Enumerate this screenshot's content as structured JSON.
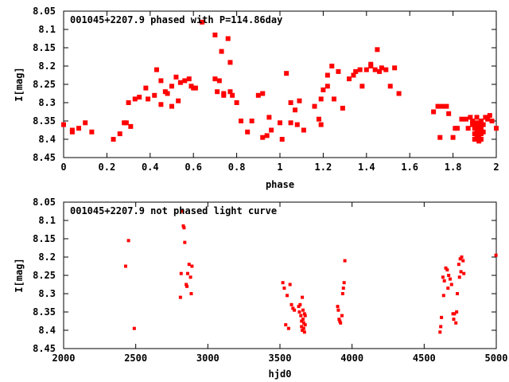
{
  "chart_data": [
    {
      "type": "scatter",
      "title": "001045+2207.9 phased with P=114.86day",
      "xlabel": "phase",
      "ylabel": "I[mag]",
      "xlim": [
        0,
        2
      ],
      "ylim": [
        8.05,
        8.45
      ],
      "y_inverted": true,
      "xticks": [
        "0",
        "0.2",
        "0.4",
        "0.6",
        "0.8",
        "1",
        "1.2",
        "1.4",
        "1.6",
        "1.8",
        "2"
      ],
      "yticks": [
        "8.05",
        "8.1",
        "8.15",
        "8.2",
        "8.25",
        "8.3",
        "8.35",
        "8.4",
        "8.45"
      ],
      "grid": false,
      "color": "#ff0000",
      "series": [
        {
          "points": [
            [
              0.0,
              8.36
            ],
            [
              0.04,
              8.375
            ],
            [
              0.04,
              8.38
            ],
            [
              0.07,
              8.37
            ],
            [
              0.1,
              8.355
            ],
            [
              0.13,
              8.38
            ],
            [
              0.23,
              8.4
            ],
            [
              0.26,
              8.385
            ],
            [
              0.28,
              8.355
            ],
            [
              0.29,
              8.355
            ],
            [
              0.31,
              8.365
            ],
            [
              0.3,
              8.3
            ],
            [
              0.33,
              8.29
            ],
            [
              0.35,
              8.285
            ],
            [
              0.38,
              8.26
            ],
            [
              0.39,
              8.29
            ],
            [
              0.42,
              8.28
            ],
            [
              0.43,
              8.21
            ],
            [
              0.45,
              8.305
            ],
            [
              0.45,
              8.24
            ],
            [
              0.47,
              8.27
            ],
            [
              0.48,
              8.275
            ],
            [
              0.5,
              8.31
            ],
            [
              0.5,
              8.255
            ],
            [
              0.52,
              8.23
            ],
            [
              0.53,
              8.295
            ],
            [
              0.54,
              8.245
            ],
            [
              0.56,
              8.24
            ],
            [
              0.58,
              8.235
            ],
            [
              0.59,
              8.255
            ],
            [
              0.6,
              8.26
            ],
            [
              0.61,
              8.26
            ],
            [
              0.64,
              8.08
            ],
            [
              0.7,
              8.115
            ],
            [
              0.7,
              8.235
            ],
            [
              0.71,
              8.27
            ],
            [
              0.72,
              8.24
            ],
            [
              0.73,
              8.16
            ],
            [
              0.74,
              8.275
            ],
            [
              0.74,
              8.28
            ],
            [
              0.76,
              8.125
            ],
            [
              0.77,
              8.19
            ],
            [
              0.77,
              8.27
            ],
            [
              0.78,
              8.28
            ],
            [
              0.8,
              8.3
            ],
            [
              0.82,
              8.35
            ],
            [
              0.85,
              8.38
            ],
            [
              0.87,
              8.35
            ],
            [
              0.9,
              8.28
            ],
            [
              0.92,
              8.275
            ],
            [
              0.92,
              8.395
            ],
            [
              0.94,
              8.39
            ],
            [
              0.95,
              8.34
            ],
            [
              0.96,
              8.375
            ],
            [
              1.0,
              8.355
            ],
            [
              1.01,
              8.4
            ],
            [
              1.03,
              8.22
            ],
            [
              1.05,
              8.3
            ],
            [
              1.05,
              8.355
            ],
            [
              1.07,
              8.32
            ],
            [
              1.08,
              8.36
            ],
            [
              1.09,
              8.295
            ],
            [
              1.11,
              8.375
            ],
            [
              1.16,
              8.31
            ],
            [
              1.18,
              8.345
            ],
            [
              1.19,
              8.36
            ],
            [
              1.19,
              8.29
            ],
            [
              1.2,
              8.265
            ],
            [
              1.22,
              8.255
            ],
            [
              1.22,
              8.225
            ],
            [
              1.24,
              8.2
            ],
            [
              1.25,
              8.29
            ],
            [
              1.27,
              8.215
            ],
            [
              1.29,
              8.315
            ],
            [
              1.32,
              8.235
            ],
            [
              1.34,
              8.225
            ],
            [
              1.35,
              8.215
            ],
            [
              1.37,
              8.21
            ],
            [
              1.38,
              8.255
            ],
            [
              1.4,
              8.21
            ],
            [
              1.42,
              8.2
            ],
            [
              1.42,
              8.195
            ],
            [
              1.44,
              8.21
            ],
            [
              1.45,
              8.155
            ],
            [
              1.46,
              8.215
            ],
            [
              1.47,
              8.205
            ],
            [
              1.49,
              8.21
            ],
            [
              1.51,
              8.255
            ],
            [
              1.53,
              8.205
            ],
            [
              1.55,
              8.275
            ],
            [
              1.71,
              8.325
            ],
            [
              1.73,
              8.31
            ],
            [
              1.74,
              8.395
            ],
            [
              1.75,
              8.31
            ],
            [
              1.77,
              8.31
            ],
            [
              1.78,
              8.33
            ],
            [
              1.8,
              8.395
            ],
            [
              1.81,
              8.37
            ],
            [
              1.82,
              8.37
            ],
            [
              1.84,
              8.345
            ],
            [
              1.86,
              8.345
            ],
            [
              1.87,
              8.37
            ],
            [
              1.88,
              8.34
            ],
            [
              1.89,
              8.35
            ],
            [
              1.89,
              8.36
            ],
            [
              1.9,
              8.37
            ],
            [
              1.9,
              8.385
            ],
            [
              1.9,
              8.4
            ],
            [
              1.91,
              8.34
            ],
            [
              1.91,
              8.355
            ],
            [
              1.91,
              8.365
            ],
            [
              1.91,
              8.375
            ],
            [
              1.91,
              8.39
            ],
            [
              1.92,
              8.36
            ],
            [
              1.92,
              8.38
            ],
            [
              1.92,
              8.395
            ],
            [
              1.92,
              8.405
            ],
            [
              1.93,
              8.35
            ],
            [
              1.93,
              8.37
            ],
            [
              1.93,
              8.385
            ],
            [
              1.93,
              8.4
            ],
            [
              1.94,
              8.36
            ],
            [
              1.94,
              8.38
            ],
            [
              1.95,
              8.34
            ],
            [
              1.96,
              8.345
            ],
            [
              1.97,
              8.335
            ],
            [
              1.98,
              8.35
            ],
            [
              2.0,
              8.37
            ]
          ]
        }
      ]
    },
    {
      "type": "scatter",
      "title": "001045+2207.9 not phased light curve",
      "xlabel": "hjd0",
      "ylabel": "I[mag]",
      "xlim": [
        2000,
        5000
      ],
      "ylim": [
        8.05,
        8.45
      ],
      "y_inverted": true,
      "xticks": [
        "2000",
        "2500",
        "3000",
        "3500",
        "4000",
        "4500",
        "5000"
      ],
      "yticks": [
        "8.05",
        "8.1",
        "8.15",
        "8.2",
        "8.25",
        "8.3",
        "8.35",
        "8.4",
        "8.45"
      ],
      "grid": false,
      "color": "#ff0000",
      "series": [
        {
          "points": [
            [
              2430,
              8.225
            ],
            [
              2450,
              8.155
            ],
            [
              2490,
              8.395
            ],
            [
              2810,
              8.31
            ],
            [
              2815,
              8.245
            ],
            [
              2820,
              8.075
            ],
            [
              2830,
              8.115
            ],
            [
              2835,
              8.12
            ],
            [
              2840,
              8.16
            ],
            [
              2850,
              8.275
            ],
            [
              2855,
              8.28
            ],
            [
              2860,
              8.245
            ],
            [
              2870,
              8.22
            ],
            [
              2880,
              8.255
            ],
            [
              2885,
              8.3
            ],
            [
              2890,
              8.225
            ],
            [
              3520,
              8.27
            ],
            [
              3530,
              8.285
            ],
            [
              3540,
              8.385
            ],
            [
              3550,
              8.305
            ],
            [
              3560,
              8.395
            ],
            [
              3570,
              8.275
            ],
            [
              3580,
              8.33
            ],
            [
              3590,
              8.34
            ],
            [
              3600,
              8.345
            ],
            [
              3630,
              8.335
            ],
            [
              3635,
              8.35
            ],
            [
              3640,
              8.33
            ],
            [
              3645,
              8.36
            ],
            [
              3650,
              8.375
            ],
            [
              3650,
              8.39
            ],
            [
              3655,
              8.31
            ],
            [
              3655,
              8.4
            ],
            [
              3660,
              8.345
            ],
            [
              3660,
              8.37
            ],
            [
              3665,
              8.38
            ],
            [
              3665,
              8.395
            ],
            [
              3670,
              8.355
            ],
            [
              3670,
              8.405
            ],
            [
              3675,
              8.385
            ],
            [
              3675,
              8.36
            ],
            [
              3900,
              8.335
            ],
            [
              3905,
              8.345
            ],
            [
              3910,
              8.37
            ],
            [
              3915,
              8.375
            ],
            [
              3920,
              8.38
            ],
            [
              3930,
              8.36
            ],
            [
              3935,
              8.3
            ],
            [
              3940,
              8.285
            ],
            [
              3945,
              8.27
            ],
            [
              3950,
              8.21
            ],
            [
              4610,
              8.405
            ],
            [
              4615,
              8.39
            ],
            [
              4620,
              8.365
            ],
            [
              4630,
              8.255
            ],
            [
              4635,
              8.305
            ],
            [
              4640,
              8.265
            ],
            [
              4650,
              8.23
            ],
            [
              4660,
              8.235
            ],
            [
              4665,
              8.285
            ],
            [
              4670,
              8.25
            ],
            [
              4680,
              8.26
            ],
            [
              4690,
              8.275
            ],
            [
              4700,
              8.355
            ],
            [
              4705,
              8.37
            ],
            [
              4710,
              8.355
            ],
            [
              4720,
              8.38
            ],
            [
              4725,
              8.35
            ],
            [
              4730,
              8.3
            ],
            [
              4740,
              8.22
            ],
            [
              4745,
              8.255
            ],
            [
              4750,
              8.205
            ],
            [
              4755,
              8.24
            ],
            [
              4760,
              8.2
            ],
            [
              4770,
              8.21
            ],
            [
              4775,
              8.245
            ],
            [
              4998,
              8.195
            ]
          ]
        }
      ]
    }
  ]
}
